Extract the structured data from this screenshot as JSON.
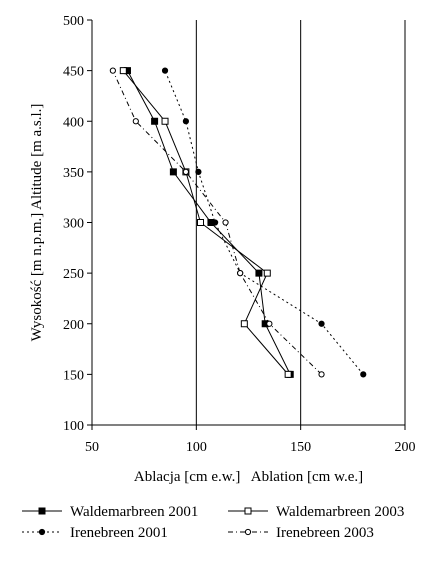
{
  "chart_data": {
    "type": "line",
    "title": "",
    "xlabel": "Ablacja [cm e.w.]   Ablation [cm w.e.]",
    "ylabel": "Wysokość [m n.p.m.] Altitude [m a.s.l.]",
    "xlim": [
      50,
      200
    ],
    "ylim": [
      100,
      500
    ],
    "xticks": [
      "50",
      "100",
      "150",
      "200"
    ],
    "yticks": [
      "100",
      "150",
      "200",
      "250",
      "300",
      "350",
      "400",
      "450",
      "500"
    ],
    "grid": "vertical",
    "legend": "bottom",
    "series": [
      {
        "name": "Waldemarbreen 2001",
        "line": "solid",
        "marker": "filled-square",
        "points": [
          {
            "x": 145,
            "y": 150
          },
          {
            "x": 133,
            "y": 200
          },
          {
            "x": 130,
            "y": 250
          },
          {
            "x": 107,
            "y": 300
          },
          {
            "x": 89,
            "y": 350
          },
          {
            "x": 80,
            "y": 400
          },
          {
            "x": 67,
            "y": 450
          }
        ]
      },
      {
        "name": "Waldemarbreen 2003",
        "line": "solid",
        "marker": "open-square",
        "points": [
          {
            "x": 144,
            "y": 150
          },
          {
            "x": 123,
            "y": 200
          },
          {
            "x": 134,
            "y": 250
          },
          {
            "x": 102,
            "y": 300
          },
          {
            "x": 95,
            "y": 350
          },
          {
            "x": 85,
            "y": 400
          },
          {
            "x": 65,
            "y": 450
          }
        ]
      },
      {
        "name": "Irenebreen 2001",
        "line": "dotted",
        "marker": "filled-circle",
        "points": [
          {
            "x": 180,
            "y": 150
          },
          {
            "x": 160,
            "y": 200
          },
          {
            "x": 121,
            "y": 250
          },
          {
            "x": 109,
            "y": 300
          },
          {
            "x": 101,
            "y": 350
          },
          {
            "x": 95,
            "y": 400
          },
          {
            "x": 85,
            "y": 450
          }
        ]
      },
      {
        "name": "Irenebreen 2003",
        "line": "dash-dot",
        "marker": "open-circle",
        "points": [
          {
            "x": 160,
            "y": 150
          },
          {
            "x": 135,
            "y": 200
          },
          {
            "x": 121,
            "y": 250
          },
          {
            "x": 114,
            "y": 300
          },
          {
            "x": 95,
            "y": 350
          },
          {
            "x": 71,
            "y": 400
          },
          {
            "x": 60,
            "y": 450
          }
        ]
      }
    ],
    "colors": {
      "series": "#000000",
      "grid": "#000000",
      "background": "#ffffff"
    }
  }
}
